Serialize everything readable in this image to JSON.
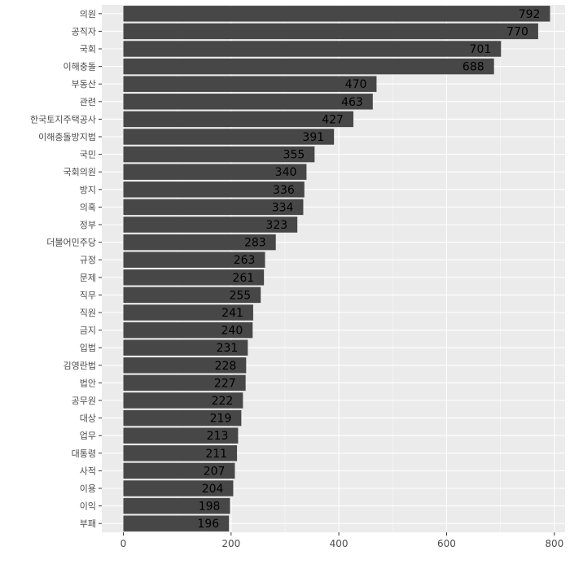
{
  "chart_data": {
    "type": "bar",
    "orientation": "horizontal",
    "categories": [
      "의원",
      "공직자",
      "국회",
      "이해충돌",
      "부동산",
      "관련",
      "한국토지주택공사",
      "이해충돌방지법",
      "국민",
      "국회의원",
      "방지",
      "의혹",
      "정부",
      "더불어민주당",
      "규정",
      "문제",
      "직무",
      "직원",
      "금지",
      "입법",
      "김영란법",
      "법안",
      "공무원",
      "대상",
      "업무",
      "대통령",
      "사적",
      "이용",
      "이익",
      "부패"
    ],
    "values": [
      792,
      770,
      701,
      688,
      470,
      463,
      427,
      391,
      355,
      340,
      336,
      334,
      323,
      283,
      263,
      261,
      255,
      241,
      240,
      231,
      228,
      227,
      222,
      219,
      213,
      211,
      207,
      204,
      198,
      196
    ],
    "xlim": [
      -40,
      820
    ],
    "x_ticks": [
      0,
      200,
      400,
      600,
      800
    ],
    "x_tick_labels": [
      "0",
      "200",
      "400",
      "600",
      "800"
    ],
    "title": "",
    "xlabel": "",
    "ylabel": "",
    "grid": true,
    "colors": {
      "panel": "#ebebeb",
      "grid_major": "#ffffff",
      "bar": "#474747",
      "label_text": "#000000",
      "axis_text": "#4d4d4d"
    }
  }
}
